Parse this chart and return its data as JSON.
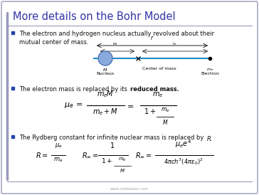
{
  "title": "More details on the Bohr Model",
  "title_color": "#3333aa",
  "background_color": "#ffffff",
  "border_color": "#9999bb",
  "text_color": "#111111",
  "bullet_color": "#2244aa",
  "bullet1": "The electron and hydrogen nucleus actually revolved about their\nmutual center of mass.",
  "bullet2_part1": "The electron mass is replaced by its ",
  "bullet2_bold": "reduced mass.",
  "bullet3": "The Rydberg constant for infinite nuclear mass is replaced by  R.",
  "watermark": "www.slidebase.com",
  "footer_color": "#9999bb"
}
